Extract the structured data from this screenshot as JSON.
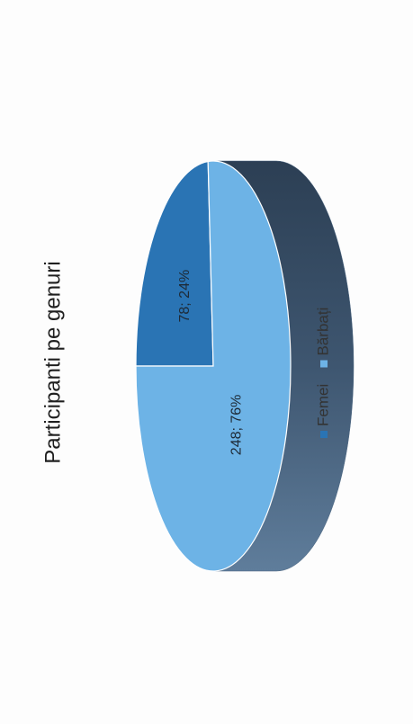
{
  "chart_data": {
    "type": "pie",
    "title": "Participanti pe genuri",
    "categories": [
      "Femei",
      "Bărbați"
    ],
    "values": [
      78,
      248
    ],
    "percentages": [
      24,
      76
    ],
    "data_labels": [
      "78; 24%",
      "248; 76%"
    ],
    "three_d": true,
    "orientation": "rotated 90° counter-clockwise",
    "legend": {
      "position": "bottom",
      "entries": [
        "Femei",
        "Bărbați"
      ]
    },
    "colors": {
      "Femei": "#2a74b4",
      "Bărbați": "#6db3e6",
      "side": "#3e5670",
      "edge": "#ffffff"
    }
  }
}
